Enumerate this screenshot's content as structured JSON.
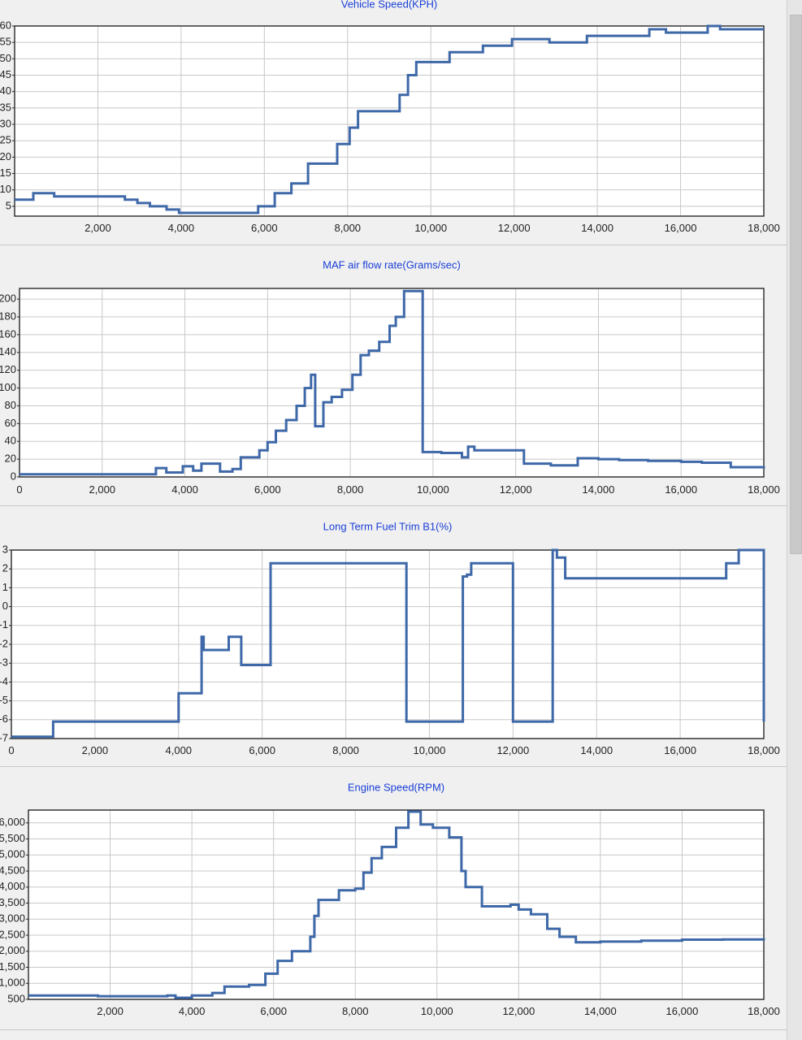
{
  "colors": {
    "line": "#3e68a8",
    "title": "#1a3fd6",
    "grid": "#c8c8c8",
    "plot_bg": "#ffffff",
    "page_bg": "#f0f0f0"
  },
  "chart_data": [
    {
      "type": "line",
      "title": "Vehicle Speed(KPH)",
      "xlim": [
        0,
        18000
      ],
      "ylim": [
        2,
        60
      ],
      "xticks": [
        2000,
        4000,
        6000,
        8000,
        10000,
        12000,
        14000,
        16000,
        18000
      ],
      "xtick_labels": [
        "2,000",
        "4,000",
        "6,000",
        "8,000",
        "10,000",
        "12,000",
        "14,000",
        "16,000",
        "18,000"
      ],
      "yticks": [
        5,
        10,
        15,
        20,
        25,
        30,
        35,
        40,
        45,
        50,
        55,
        60
      ],
      "ytick_labels": [
        "5",
        "10",
        "15",
        "20",
        "25",
        "30",
        "35",
        "40",
        "45",
        "50",
        "55",
        "60"
      ],
      "grid": true,
      "step": true,
      "series": [
        {
          "x": [
            0,
            450,
            950,
            1950,
            2650,
            2950,
            3250,
            3650,
            3950,
            5850,
            6250,
            6650,
            7050,
            7750,
            8050,
            8250,
            8550,
            9250,
            9450,
            9650,
            9950,
            10450,
            11250,
            11950,
            12850,
            13750,
            14150,
            15250,
            15650,
            16650,
            16950,
            18000
          ],
          "y": [
            7,
            9,
            8,
            8,
            7,
            6,
            5,
            4,
            3,
            5,
            9,
            12,
            18,
            24,
            29,
            34,
            34,
            39,
            45,
            49,
            49,
            52,
            54,
            56,
            55,
            57,
            57,
            59,
            58,
            60,
            59,
            59
          ]
        }
      ]
    },
    {
      "type": "line",
      "title": "MAF air flow rate(Grams/sec)",
      "xlim": [
        0,
        18000
      ],
      "ylim": [
        0,
        212
      ],
      "xticks": [
        0,
        2000,
        4000,
        6000,
        8000,
        10000,
        12000,
        14000,
        16000,
        18000
      ],
      "xtick_labels": [
        "0",
        "2,000",
        "4,000",
        "6,000",
        "8,000",
        "10,000",
        "12,000",
        "14,000",
        "16,000",
        "18,000"
      ],
      "yticks": [
        0,
        20,
        40,
        60,
        80,
        100,
        120,
        140,
        160,
        180,
        200
      ],
      "ytick_labels": [
        "0",
        "20",
        "40",
        "60",
        "80",
        "100",
        "120",
        "140",
        "160",
        "180",
        "200"
      ],
      "grid": true,
      "step": true,
      "series": [
        {
          "x": [
            0,
            3300,
            3550,
            3950,
            4200,
            4400,
            4550,
            4850,
            5150,
            5350,
            5550,
            5800,
            6000,
            6200,
            6450,
            6700,
            6900,
            7050,
            7150,
            7350,
            7550,
            7800,
            8050,
            8250,
            8450,
            8700,
            8950,
            9100,
            9300,
            9550,
            9750,
            10200,
            10700,
            10850,
            11000,
            11400,
            12200,
            12850,
            13500,
            14000,
            14500,
            15200,
            16000,
            16500,
            17200,
            18000
          ],
          "y": [
            3,
            10,
            5,
            12,
            7,
            15,
            15,
            6,
            9,
            22,
            22,
            30,
            39,
            52,
            64,
            80,
            100,
            115,
            57,
            84,
            90,
            98,
            115,
            137,
            142,
            152,
            170,
            180,
            209,
            209,
            28,
            27,
            22,
            34,
            30,
            30,
            15,
            13,
            21,
            20,
            19,
            18,
            17,
            16,
            11,
            12
          ]
        }
      ]
    },
    {
      "type": "line",
      "title": "Long Term Fuel Trim B1(%)",
      "xlim": [
        0,
        18000
      ],
      "ylim": [
        -7,
        3
      ],
      "xticks": [
        0,
        2000,
        4000,
        6000,
        8000,
        10000,
        12000,
        14000,
        16000,
        18000
      ],
      "xtick_labels": [
        "0",
        "2,000",
        "4,000",
        "6,000",
        "8,000",
        "10,000",
        "12,000",
        "14,000",
        "16,000",
        "18,000"
      ],
      "yticks": [
        -7,
        -6,
        -5,
        -4,
        -3,
        -2,
        -1,
        0,
        1,
        2,
        3
      ],
      "ytick_labels": [
        "-7",
        "-6",
        "-5",
        "-4",
        "-3",
        "-2",
        "-1",
        "0",
        "1",
        "2",
        "3"
      ],
      "grid": true,
      "step": true,
      "series": [
        {
          "x": [
            0,
            1000,
            4000,
            4550,
            4600,
            5200,
            5500,
            6200,
            9450,
            10800,
            10900,
            11000,
            12000,
            12950,
            13050,
            13250,
            17100,
            17400,
            18000
          ],
          "y": [
            -6.9,
            -6.1,
            -4.6,
            -1.6,
            -2.3,
            -1.6,
            -3.1,
            2.3,
            -6.1,
            1.6,
            1.7,
            2.3,
            -6.1,
            3,
            2.6,
            1.5,
            2.3,
            3,
            -6.1
          ]
        }
      ]
    },
    {
      "type": "line",
      "title": "Engine Speed(RPM)",
      "xlim": [
        0,
        18000
      ],
      "ylim": [
        500,
        6400
      ],
      "xticks": [
        2000,
        4000,
        6000,
        8000,
        10000,
        12000,
        14000,
        16000,
        18000
      ],
      "xtick_labels": [
        "2,000",
        "4,000",
        "6,000",
        "8,000",
        "10,000",
        "12,000",
        "14,000",
        "16,000",
        "18,000"
      ],
      "yticks": [
        500,
        1000,
        1500,
        2000,
        2500,
        3000,
        3500,
        4000,
        4500,
        5000,
        5500,
        6000
      ],
      "ytick_labels": [
        "500",
        "1,000",
        "1,500",
        "2,000",
        "2,500",
        "3,000",
        "3,500",
        "4,000",
        "4,500",
        "5,000",
        "5,500",
        "6,000"
      ],
      "grid": true,
      "step": true,
      "series": [
        {
          "x": [
            0,
            1700,
            3400,
            3600,
            4000,
            4500,
            4800,
            5400,
            5800,
            6100,
            6450,
            6900,
            7000,
            7100,
            7300,
            7600,
            8000,
            8200,
            8400,
            8650,
            9000,
            9300,
            9600,
            9900,
            10300,
            10600,
            10700,
            11100,
            11800,
            12000,
            12300,
            12700,
            13000,
            13400,
            14000,
            15000,
            16000,
            17000,
            18000
          ],
          "y": [
            620,
            600,
            620,
            550,
            620,
            700,
            900,
            950,
            1300,
            1700,
            2000,
            2450,
            3100,
            3600,
            3600,
            3900,
            3950,
            4450,
            4900,
            5250,
            5850,
            6350,
            5950,
            5850,
            5550,
            4500,
            4000,
            3400,
            3450,
            3300,
            3150,
            2700,
            2450,
            2280,
            2300,
            2330,
            2360,
            2370,
            2340
          ]
        }
      ]
    }
  ]
}
